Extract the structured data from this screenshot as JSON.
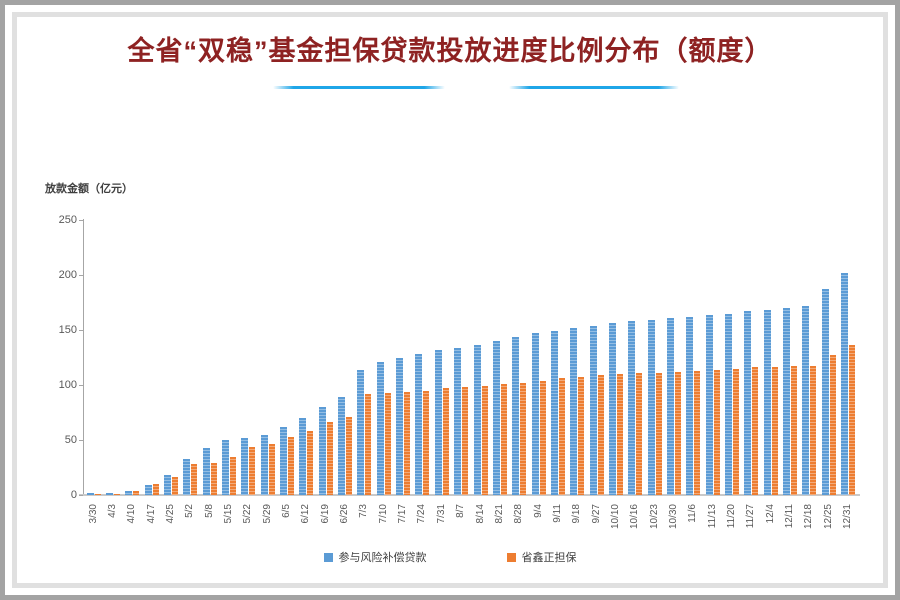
{
  "title": "全省“双稳”基金担保贷款投放进度比例分布（额度）",
  "colors": {
    "title": "#8e2222",
    "divider": "#1fa6e8",
    "axis": "#a6a6a6",
    "tick_label": "#595959",
    "series_blue": "#5b9bd5",
    "series_orange": "#ed7d31"
  },
  "chart_data": {
    "type": "bar",
    "title": "全省“双稳”基金担保贷款投放进度比例分布（额度）",
    "xlabel": "",
    "ylabel": "放款金额（亿元）",
    "ylim": [
      0,
      250
    ],
    "yticks": [
      0,
      50,
      100,
      150,
      200,
      250
    ],
    "grid": false,
    "legend_position": "bottom",
    "categories": [
      "3/30",
      "4/3",
      "4/10",
      "4/17",
      "4/25",
      "5/2",
      "5/8",
      "5/15",
      "5/22",
      "5/29",
      "6/5",
      "6/12",
      "6/19",
      "6/26",
      "7/3",
      "7/10",
      "7/17",
      "7/24",
      "7/31",
      "8/7",
      "8/14",
      "8/21",
      "8/28",
      "9/4",
      "9/11",
      "9/18",
      "9/27",
      "10/10",
      "10/16",
      "10/23",
      "10/30",
      "11/6",
      "11/13",
      "11/20",
      "11/27",
      "12/4",
      "12/11",
      "12/18",
      "12/25",
      "12/31"
    ],
    "series": [
      {
        "name": "参与风险补偿贷款",
        "color": "#5b9bd5",
        "values": [
          1.5,
          1.5,
          4,
          9,
          18,
          33,
          43,
          50,
          52,
          55,
          62,
          70,
          80,
          89,
          114,
          121,
          125,
          128,
          132,
          134,
          136,
          140,
          144,
          147,
          149,
          152,
          154,
          156,
          158,
          159,
          161,
          162,
          164,
          165,
          167,
          168,
          170,
          172,
          187,
          202
        ]
      },
      {
        "name": "省鑫正担保",
        "color": "#ed7d31",
        "values": [
          1,
          1,
          4,
          10,
          16,
          28,
          29,
          35,
          44,
          46,
          53,
          58,
          66,
          71,
          92,
          93,
          94,
          95,
          97,
          98,
          99,
          101,
          102,
          104,
          106,
          107,
          109,
          110,
          111,
          111,
          112,
          113,
          114,
          115,
          116,
          116,
          117,
          117,
          127,
          136
        ]
      }
    ]
  }
}
